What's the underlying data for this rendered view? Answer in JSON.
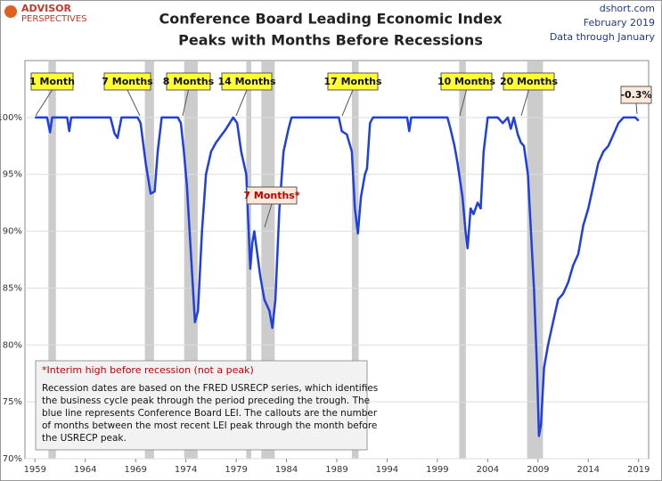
{
  "chart_data": {
    "type": "line",
    "title": "Conference Board Leading Economic Index",
    "subtitle": "Peaks with Months Before Recessions",
    "brand": [
      "ADVISOR",
      "PERSPECTIVES"
    ],
    "source": [
      "dshort.com",
      "February 2019",
      "Data through January"
    ],
    "xlim": [
      1958,
      2020
    ],
    "xticks": [
      1959,
      1964,
      1969,
      1974,
      1979,
      1984,
      1989,
      1994,
      1999,
      2004,
      2009,
      2014,
      2019
    ],
    "ylim": [
      70,
      105
    ],
    "yticks": [
      {
        "value": 70,
        "label": "70%"
      },
      {
        "value": 75,
        "label": "75%"
      },
      {
        "value": 80,
        "label": "80%"
      },
      {
        "value": 85,
        "label": "85%"
      },
      {
        "value": 90,
        "label": "90%"
      },
      {
        "value": 95,
        "label": "95%"
      },
      {
        "value": 100,
        "label": "100%"
      }
    ],
    "grid": true,
    "recessions": [
      [
        1960.33,
        1961.08
      ],
      [
        1969.92,
        1970.83
      ],
      [
        1973.83,
        1975.17
      ],
      [
        1980.0,
        1980.5
      ],
      [
        1981.5,
        1982.83
      ],
      [
        1990.5,
        1991.17
      ],
      [
        2001.17,
        2001.83
      ],
      [
        2007.92,
        2009.5
      ]
    ],
    "recession_color": "#cccccc",
    "series": [
      {
        "color": "#1f3fe0",
        "x": [
          1959,
          1960.2,
          1960.5,
          1960.7,
          1961,
          1962.2,
          1962.4,
          1962.6,
          1966.5,
          1966.9,
          1967.2,
          1967.6,
          1969.2,
          1969.5,
          1970,
          1970.5,
          1970.9,
          1971.2,
          1971.6,
          1973.2,
          1973.5,
          1973.8,
          1974.1,
          1974.5,
          1974.9,
          1975.2,
          1975.6,
          1976,
          1976.5,
          1977,
          1978,
          1978.7,
          1979.1,
          1979.5,
          1980,
          1980.4,
          1980.6,
          1980.8,
          1981.1,
          1981.4,
          1981.8,
          1982.3,
          1982.6,
          1982.9,
          1983.3,
          1983.7,
          1984.2,
          1984.5,
          1989.2,
          1989.5,
          1990,
          1990.5,
          1990.8,
          1991.1,
          1991.4,
          1991.8,
          1992,
          1992.3,
          1992.6,
          1996,
          1996.2,
          1996.4,
          2000,
          2000.3,
          2000.7,
          2001,
          2001.5,
          2001.8,
          2002,
          2002.3,
          2002.6,
          2003,
          2003.3,
          2003.6,
          2004,
          2005,
          2005.5,
          2006,
          2006.3,
          2006.6,
          2007,
          2007.3,
          2007.6,
          2008,
          2008.3,
          2008.6,
          2008.9,
          2009.1,
          2009.3,
          2009.6,
          2010,
          2010.5,
          2011,
          2011.5,
          2012,
          2012.5,
          2013,
          2013.5,
          2014,
          2014.5,
          2015,
          2015.5,
          2016,
          2016.5,
          2017,
          2017.5,
          2018.7,
          2019
        ],
        "values": [
          100,
          100,
          98.7,
          100,
          100,
          100,
          98.8,
          100,
          100,
          98.6,
          98.2,
          100,
          100,
          99.5,
          96,
          93.3,
          93.5,
          97,
          100,
          100,
          99.5,
          97,
          94,
          88,
          82,
          83,
          90,
          95,
          97,
          97.8,
          99,
          100,
          99.5,
          97,
          95,
          86.7,
          89,
          90,
          88,
          86,
          84,
          83,
          81.5,
          84,
          92,
          97,
          99,
          100,
          100,
          98.8,
          98.5,
          97,
          92,
          89.8,
          93,
          95,
          95.5,
          99.5,
          100,
          100,
          98.8,
          100,
          100,
          99,
          97.5,
          96,
          93,
          90,
          88.5,
          92,
          91.5,
          92.5,
          92,
          97,
          100,
          100,
          99.5,
          100,
          99,
          100,
          98.5,
          97.8,
          97.5,
          95,
          90,
          85,
          78,
          72,
          73,
          78,
          80,
          82,
          84,
          84.5,
          85.5,
          87,
          88,
          90.5,
          92,
          94,
          96,
          97,
          97.5,
          98.5,
          99.5,
          100,
          100,
          99.7
        ]
      }
    ],
    "annotations": [
      "1 Month",
      "7 Months",
      "8 Months",
      "14 Months",
      "17 Months",
      "10 Months",
      "20 Months",
      "7 Months*",
      "-0.3%"
    ],
    "note_title": "*Interim high before recession (not a peak)",
    "note_lines": [
      "Recession dates are based on the FRED USRECP series, which identifies",
      "the business cycle peak through the period preceding the trough. The",
      "blue line represents Conference Board LEI. The callouts are the number",
      "of months between the most recent LEI peak through the month  before",
      "the USRECP peak."
    ]
  }
}
